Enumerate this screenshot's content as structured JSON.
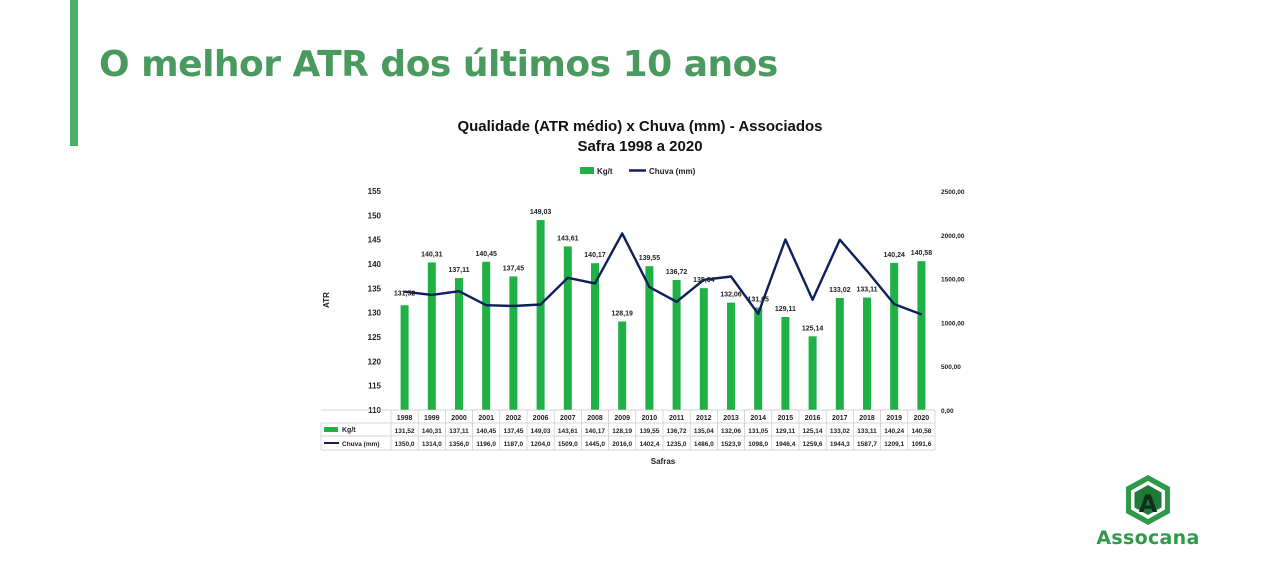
{
  "slide": {
    "headline": "O melhor ATR dos últimos 10 anos",
    "accent_color": "#4caf6a",
    "headline_color": "#4a9a5f"
  },
  "logo": {
    "text": "Assocana",
    "icon": "assocana-logo-icon",
    "color": "#2e9a4a"
  },
  "chart_data": {
    "type": "bar",
    "title": "Qualidade (ATR médio) x Chuva (mm) - Associados",
    "subtitle": "Safra 1998 a 2020",
    "xlabel": "Safras",
    "ylabel": "ATR",
    "ylim": [
      110,
      155
    ],
    "y_ticks": [
      "110",
      "115",
      "120",
      "125",
      "130",
      "135",
      "140",
      "145",
      "150",
      "155"
    ],
    "y2lim": [
      0,
      2500
    ],
    "y2_ticks": [
      "0,00",
      "500,00",
      "1000,00",
      "1500,00",
      "2000,00",
      "2500,00"
    ],
    "legend_position": "top",
    "grid": false,
    "categories": [
      "1998",
      "1999",
      "2000",
      "2001",
      "2002",
      "2006",
      "2007",
      "2008",
      "2009",
      "2010",
      "2011",
      "2012",
      "2013",
      "2014",
      "2015",
      "2016",
      "2017",
      "2018",
      "2019",
      "2020"
    ],
    "series": [
      {
        "name": "Kg/t",
        "kind": "bar",
        "axis": "left",
        "color": "#1fb146",
        "values": [
          131.52,
          140.31,
          137.11,
          140.45,
          137.45,
          149.03,
          143.61,
          140.17,
          128.19,
          139.55,
          136.72,
          135.04,
          132.06,
          131.05,
          129.11,
          125.14,
          133.02,
          133.11,
          140.24,
          140.58
        ],
        "labels": [
          "131,52",
          "140,31",
          "137,11",
          "140,45",
          "137,45",
          "149,03",
          "143,61",
          "140,17",
          "128,19",
          "139,55",
          "136,72",
          "135,04",
          "132,06",
          "131,05",
          "129,11",
          "125,14",
          "133,02",
          "133,11",
          "140,24",
          "140,58"
        ]
      },
      {
        "name": "Chuva (mm)",
        "kind": "line",
        "axis": "right",
        "color": "#0d1f5c",
        "values": [
          1350.0,
          1314.0,
          1356.0,
          1196.0,
          1187.0,
          1204.0,
          1509.0,
          1445.0,
          2016.0,
          1402.4,
          1235.0,
          1486.0,
          1523.9,
          1098.0,
          1946.4,
          1259.6,
          1944.3,
          1587.7,
          1209.1,
          1091.6
        ],
        "labels": [
          "1350,0",
          "1314,0",
          "1356,0",
          "1196,0",
          "1187,0",
          "1204,0",
          "1509,0",
          "1445,0",
          "2016,0",
          "1402,4",
          "1235,0",
          "1486,0",
          "1523,9",
          "1098,0",
          "1946,4",
          "1259,6",
          "1944,3",
          "1587,7",
          "1209,1",
          "1091,6"
        ]
      }
    ]
  }
}
